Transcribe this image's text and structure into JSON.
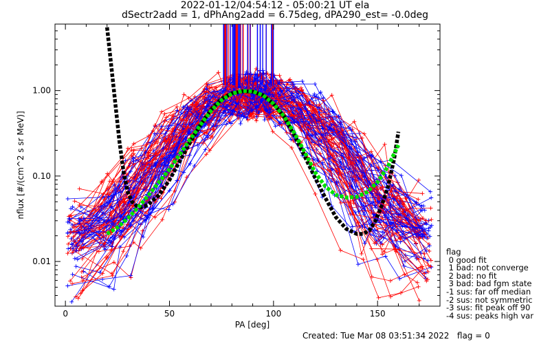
{
  "chart_data": {
    "type": "line",
    "title_line1": "2022-01-12/04:54:12 - 05:00:21 UT ela",
    "title_line2": "dSectr2add = 1, dPhAng2add = 6.75deg, dPA290_est=  -0.0deg",
    "xlabel": "PA [deg]",
    "ylabel": "nflux [#/(cm^2 s sr MeV)]",
    "xlim": [
      -5,
      180
    ],
    "ylim": [
      0.003,
      6.0
    ],
    "yscale": "log",
    "xticks": [
      0,
      50,
      100,
      150
    ],
    "yticks": [
      0.01,
      0.1,
      1.0
    ],
    "ytick_labels": [
      "0.01",
      "0.10",
      "1.00"
    ],
    "series": [
      {
        "color": "#000000",
        "x": [
          20,
          22,
          24,
          26,
          28,
          30,
          32,
          34,
          36,
          38,
          40,
          45,
          50,
          55,
          60,
          65,
          70,
          75,
          80,
          85,
          90,
          95,
          100,
          105,
          110,
          115,
          120,
          125,
          130,
          135,
          140,
          143,
          146,
          149,
          152,
          155,
          158,
          160
        ],
        "y": [
          5.5,
          2.0,
          0.7,
          0.25,
          0.11,
          0.065,
          0.05,
          0.045,
          0.043,
          0.044,
          0.047,
          0.06,
          0.09,
          0.15,
          0.25,
          0.4,
          0.6,
          0.8,
          0.93,
          0.98,
          0.97,
          0.88,
          0.7,
          0.5,
          0.3,
          0.17,
          0.095,
          0.055,
          0.033,
          0.024,
          0.021,
          0.021,
          0.023,
          0.03,
          0.045,
          0.075,
          0.16,
          0.33
        ]
      },
      {
        "color": "#00e000",
        "x": [
          20,
          25,
          30,
          35,
          40,
          45,
          50,
          55,
          60,
          65,
          70,
          75,
          80,
          85,
          90,
          95,
          100,
          105,
          110,
          115,
          120,
          125,
          130,
          135,
          140,
          145,
          150,
          155,
          160
        ],
        "y": [
          0.021,
          0.025,
          0.032,
          0.043,
          0.06,
          0.085,
          0.12,
          0.18,
          0.27,
          0.4,
          0.58,
          0.77,
          0.92,
          0.99,
          0.98,
          0.88,
          0.7,
          0.5,
          0.32,
          0.19,
          0.11,
          0.075,
          0.06,
          0.056,
          0.057,
          0.065,
          0.085,
          0.13,
          0.23
        ]
      }
    ],
    "legend": {
      "title": "flag",
      "entries": [
        " 0 good fit",
        " 1 bad: not converge",
        " 2 bad: no fit",
        " 3 bad: bad fgm state",
        "-1 sus: far off median",
        "-2 sus: not symmetric",
        "-3 sus: fit peak off 90",
        "-4 sus: peaks high var"
      ],
      "position": "right"
    },
    "footer": "Created: Tue Mar 08 03:51:34 2022   flag = 0",
    "colors": {
      "red": "#ff0000",
      "blue": "#0000ff",
      "black": "#000000",
      "green": "#00e000"
    }
  }
}
